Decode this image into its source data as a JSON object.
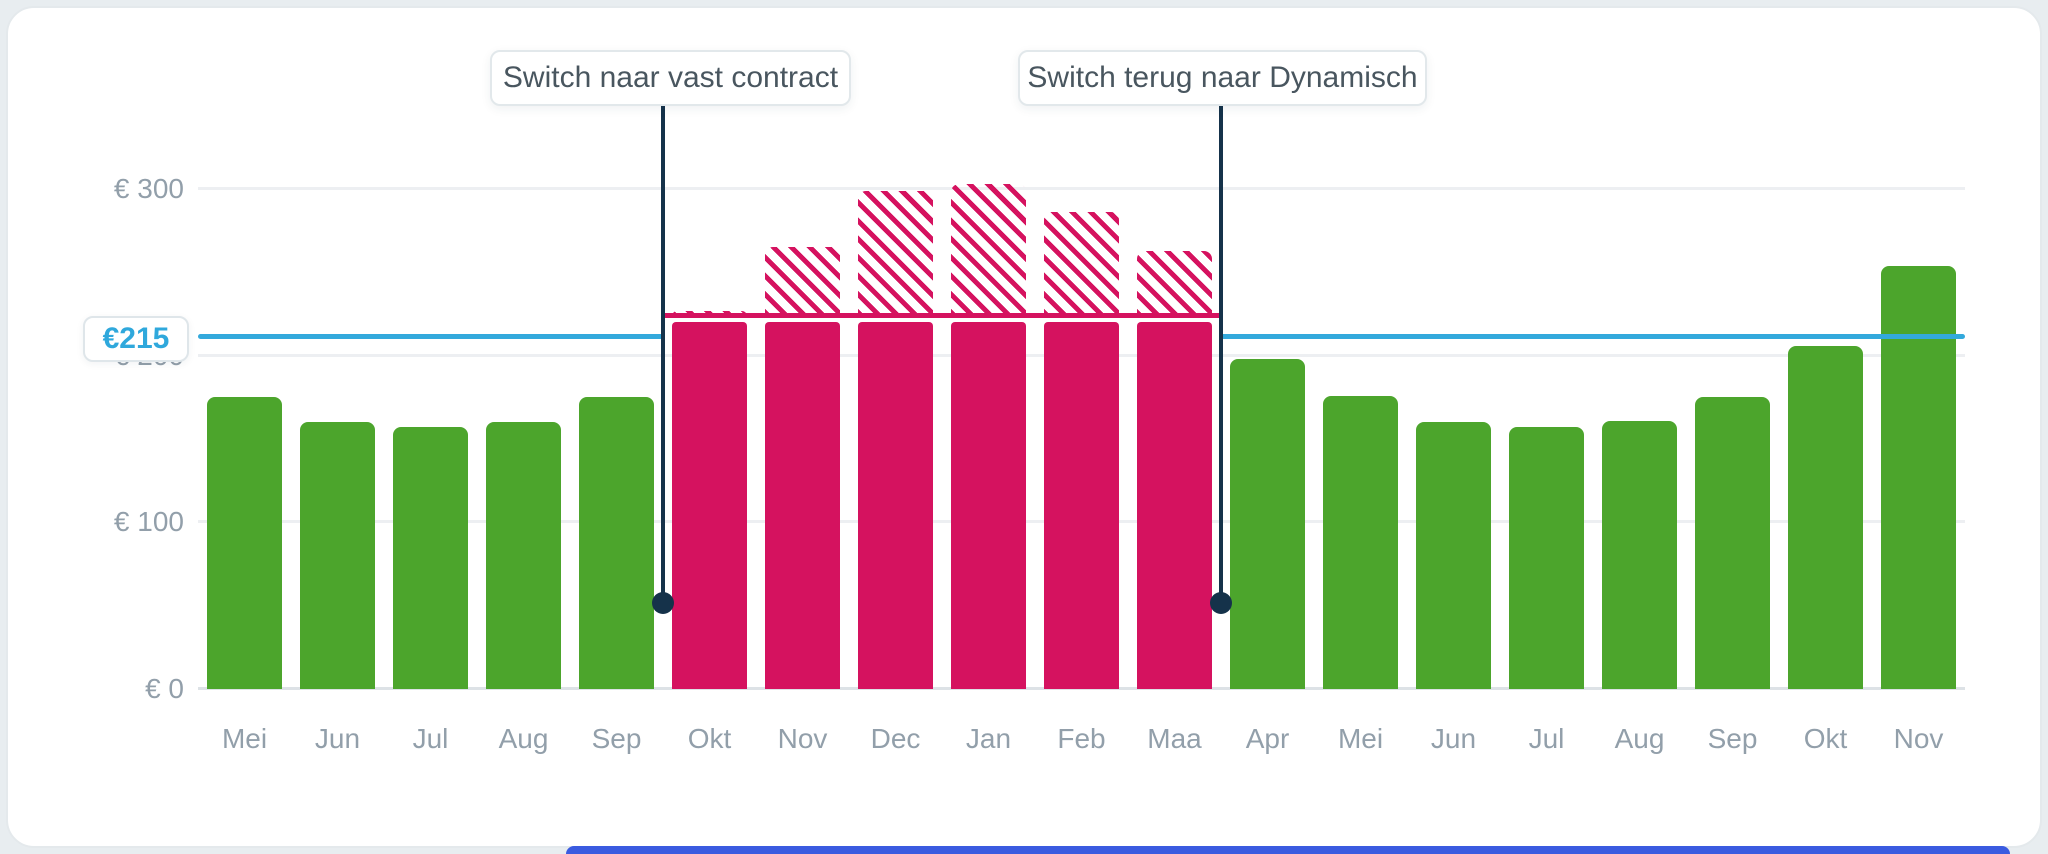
{
  "chart_data": {
    "type": "bar",
    "title": "",
    "currency": "EUR",
    "months": [
      "Mei",
      "Jun",
      "Jul",
      "Aug",
      "Sep",
      "Okt",
      "Nov",
      "Dec",
      "Jan",
      "Feb",
      "Maa",
      "Apr",
      "Mei",
      "Jun",
      "Jul",
      "Aug",
      "Sep",
      "Okt",
      "Nov"
    ],
    "series": [
      {
        "name": "dynamisch-tarief",
        "color": "#4CA52C",
        "values": [
          175,
          160,
          157,
          160,
          175,
          null,
          null,
          null,
          null,
          null,
          null,
          198,
          176,
          160,
          157,
          161,
          175,
          206,
          254
        ]
      },
      {
        "name": "vast-contract",
        "color": "#D5125F",
        "values": [
          null,
          null,
          null,
          null,
          null,
          220,
          220,
          220,
          220,
          220,
          220,
          null,
          null,
          null,
          null,
          null,
          null,
          null,
          null
        ]
      },
      {
        "name": "dynamisch-equivalent",
        "color": "#D5125F",
        "pattern": "diagonal-stripes",
        "values": [
          null,
          null,
          null,
          null,
          null,
          227,
          265,
          299,
          303,
          286,
          263,
          null,
          null,
          null,
          null,
          null,
          null,
          null,
          null
        ]
      }
    ],
    "y_axis": {
      "min": 0,
      "max": 300,
      "ticks": [
        {
          "label": "€ 300",
          "value": 300
        },
        {
          "label": "€ 200",
          "value": 200
        },
        {
          "label": "€ 100",
          "value": 100
        },
        {
          "label": "€ 0",
          "value": 0
        }
      ]
    },
    "reference_line": {
      "label": "€215",
      "value": 215,
      "color": "#33A9DC"
    },
    "vast_level_line": {
      "value": 224,
      "color": "#D5125F"
    },
    "annotations": [
      {
        "label": "Switch naar vast contract",
        "position": "between Sep and Okt"
      },
      {
        "label": "Switch terug naar Dynamisch",
        "position": "between Maa and Apr"
      }
    ],
    "grid": "horizontal",
    "legend": "none"
  },
  "colors": {
    "green_bar": "#4CA52C",
    "pink_bar": "#D5125F",
    "navy_marker": "#15324A",
    "reference_blue": "#33A9DC",
    "axis_text": "#929FAA",
    "gridline": "#EDEFF2",
    "card_background": "#FFFFFF",
    "page_background": "#E8EDF0",
    "bottom_partial_element": "#3A5BE0"
  }
}
